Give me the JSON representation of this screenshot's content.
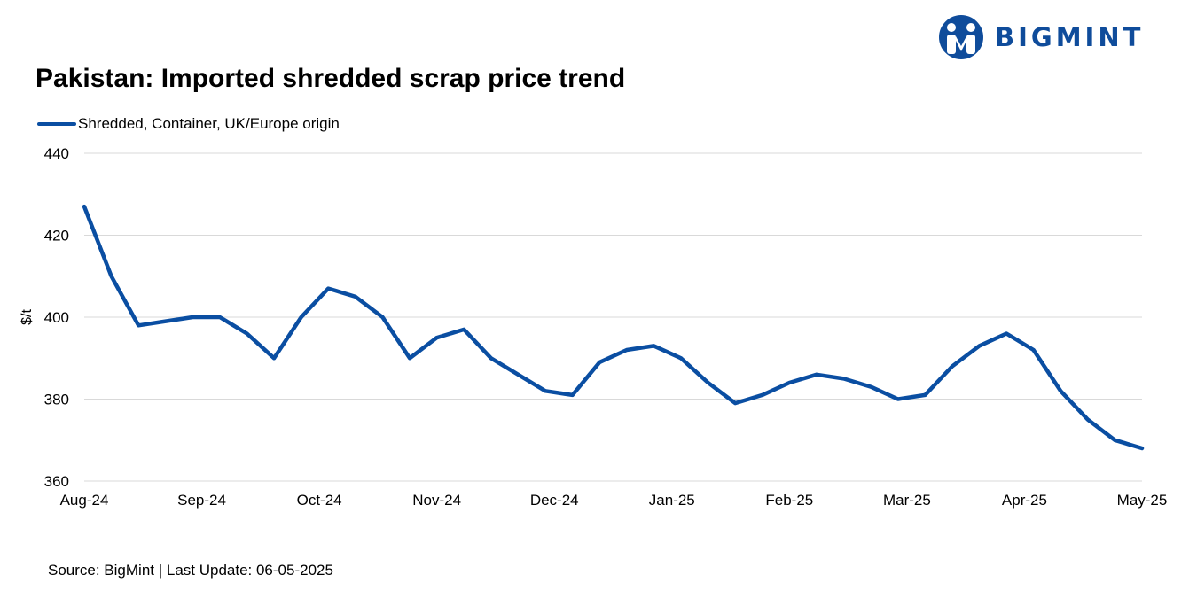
{
  "logo": {
    "text": "BIGMINT",
    "color": "#0f4c9b",
    "icon": "bigmint-logo-icon"
  },
  "source": "Source: BigMint | Last Update: 06-05-2025",
  "chart_data": {
    "type": "line",
    "title": "Pakistan: Imported shredded scrap price trend",
    "ylabel": "$/t",
    "xlabel": "",
    "ylim": [
      360,
      440
    ],
    "yticks": [
      360,
      380,
      400,
      420,
      440
    ],
    "xtick_labels": [
      "Aug-24",
      "Sep-24",
      "Oct-24",
      "Nov-24",
      "Dec-24",
      "Jan-25",
      "Feb-25",
      "Mar-25",
      "Apr-25",
      "May-25"
    ],
    "grid": "horizontal",
    "legend_position": "top-left",
    "series": [
      {
        "name": "Shredded, Container, UK/Europe origin",
        "color": "#0a4ea2",
        "values": [
          427,
          410,
          398,
          399,
          400,
          400,
          396,
          390,
          400,
          407,
          405,
          400,
          390,
          395,
          397,
          390,
          386,
          382,
          381,
          389,
          392,
          393,
          390,
          384,
          379,
          381,
          384,
          386,
          385,
          383,
          380,
          381,
          388,
          393,
          396,
          392,
          382,
          375,
          370,
          368
        ]
      }
    ]
  }
}
